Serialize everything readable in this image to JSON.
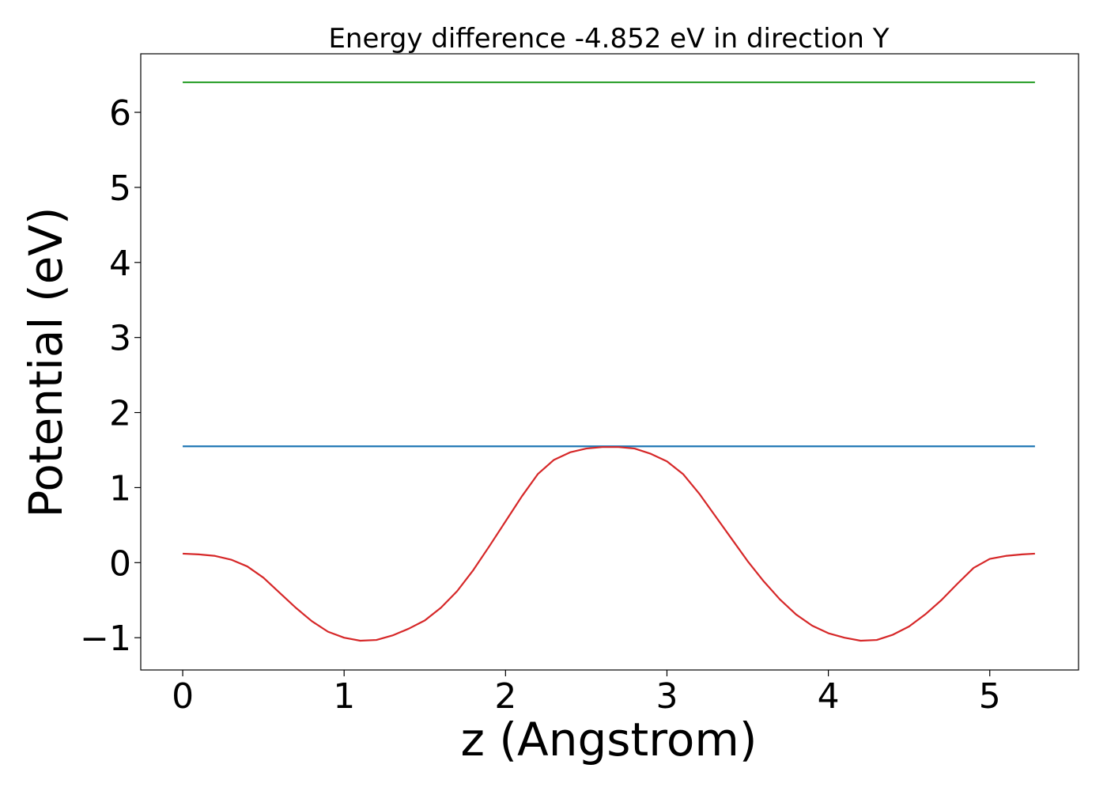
{
  "chart_data": {
    "type": "line",
    "title": "Energy difference -4.852 eV in direction Y",
    "xlabel": "z (Angstrom)",
    "ylabel": "Potential (eV)",
    "xlim": [
      -0.26,
      5.55
    ],
    "ylim": [
      -1.43,
      6.78
    ],
    "xticks": [
      0,
      1,
      2,
      3,
      4,
      5
    ],
    "yticks": [
      -1,
      0,
      1,
      2,
      3,
      4,
      5,
      6
    ],
    "xtick_labels": [
      "0",
      "1",
      "2",
      "3",
      "4",
      "5"
    ],
    "ytick_labels": [
      "−1",
      "0",
      "1",
      "2",
      "3",
      "4",
      "5",
      "6"
    ],
    "grid": false,
    "legend": "none",
    "series": [
      {
        "color": "#2ca02c",
        "x": [
          0,
          5.28
        ],
        "y": [
          6.4,
          6.4
        ]
      },
      {
        "color": "#1f77b4",
        "x": [
          0,
          5.28
        ],
        "y": [
          1.55,
          1.55
        ]
      },
      {
        "color": "#d62728",
        "x": [
          0,
          0.1,
          0.2,
          0.3,
          0.4,
          0.5,
          0.6,
          0.7,
          0.8,
          0.9,
          1.0,
          1.1,
          1.2,
          1.3,
          1.4,
          1.5,
          1.6,
          1.7,
          1.8,
          1.9,
          2.0,
          2.1,
          2.2,
          2.3,
          2.4,
          2.5,
          2.6,
          2.7,
          2.8,
          2.9,
          3.0,
          3.1,
          3.2,
          3.3,
          3.4,
          3.5,
          3.6,
          3.7,
          3.8,
          3.9,
          4.0,
          4.1,
          4.2,
          4.3,
          4.4,
          4.5,
          4.6,
          4.7,
          4.8,
          4.9,
          5.0,
          5.1,
          5.2,
          5.28
        ],
        "y": [
          0.12,
          0.11,
          0.09,
          0.04,
          -0.05,
          -0.2,
          -0.4,
          -0.6,
          -0.78,
          -0.92,
          -1.0,
          -1.04,
          -1.03,
          -0.97,
          -0.88,
          -0.77,
          -0.6,
          -0.38,
          -0.1,
          0.22,
          0.55,
          0.88,
          1.18,
          1.37,
          1.47,
          1.52,
          1.54,
          1.54,
          1.52,
          1.45,
          1.35,
          1.18,
          0.92,
          0.62,
          0.32,
          0.02,
          -0.25,
          -0.49,
          -0.69,
          -0.84,
          -0.94,
          -1.0,
          -1.04,
          -1.03,
          -0.96,
          -0.85,
          -0.69,
          -0.5,
          -0.28,
          -0.07,
          0.05,
          0.09,
          0.11,
          0.12
        ]
      }
    ]
  }
}
